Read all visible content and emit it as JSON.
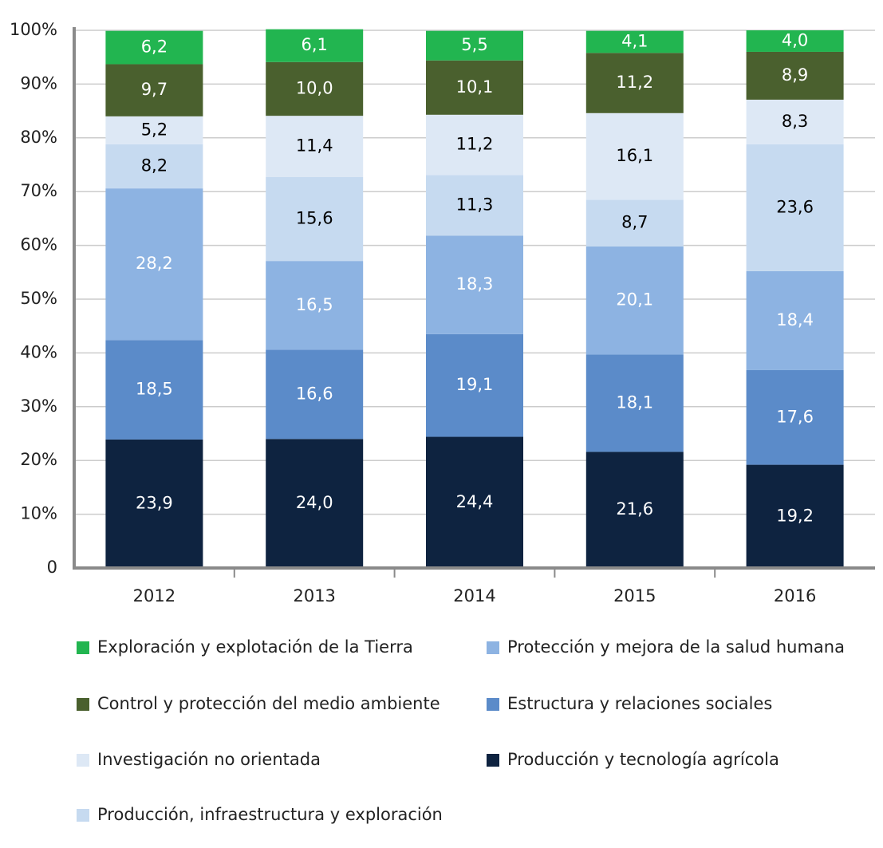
{
  "chart_data": {
    "type": "stacked_bar",
    "categories": [
      "2012",
      "2013",
      "2014",
      "2015",
      "2016"
    ],
    "series": [
      {
        "name": "Producción y tecnología agrícola",
        "color": "#0e2340",
        "label_color": "#ffffff",
        "values": [
          23.9,
          24.0,
          24.4,
          21.6,
          19.2
        ],
        "value_labels": [
          "23,9",
          "24,0",
          "24,4",
          "21,6",
          "19,2"
        ]
      },
      {
        "name": "Estructura y relaciones sociales",
        "color": "#5b8bc9",
        "label_color": "#ffffff",
        "values": [
          18.5,
          16.6,
          19.1,
          18.1,
          17.6
        ],
        "value_labels": [
          "18,5",
          "16,6",
          "19,1",
          "18,1",
          "17,6"
        ]
      },
      {
        "name": "Protección y mejora de la salud humana",
        "color": "#8db3e2",
        "label_color": "#ffffff",
        "values": [
          28.2,
          16.5,
          18.3,
          20.1,
          18.4
        ],
        "value_labels": [
          "28,2",
          "16,5",
          "18,3",
          "20,1",
          "18,4"
        ]
      },
      {
        "name": "Producción, infraestructura y exploración",
        "color": "#c6daf0",
        "label_color": "#000000",
        "values": [
          8.2,
          15.6,
          11.3,
          8.7,
          23.6
        ],
        "value_labels": [
          "8,2",
          "15,6",
          "11,3",
          "8,7",
          "23,6"
        ]
      },
      {
        "name": "Investigación no orientada",
        "color": "#dde8f5",
        "label_color": "#000000",
        "values": [
          5.2,
          11.4,
          11.2,
          16.1,
          8.3
        ],
        "value_labels": [
          "5,2",
          "11,4",
          "11,2",
          "16,1",
          "8,3"
        ]
      },
      {
        "name": "Control y protección del medio ambiente",
        "color": "#4a602e",
        "label_color": "#ffffff",
        "values": [
          9.7,
          10.0,
          10.1,
          11.2,
          8.9
        ],
        "value_labels": [
          "9,7",
          "10,0",
          "10,1",
          "11,2",
          "8,9"
        ]
      },
      {
        "name": "Exploración y explotación de la Tierra",
        "color": "#22b550",
        "label_color": "#ffffff",
        "values": [
          6.2,
          6.1,
          5.5,
          4.1,
          4.0
        ],
        "value_labels": [
          "6,2",
          "6,1",
          "5,5",
          "4,1",
          "4,0"
        ]
      }
    ],
    "ylim": [
      0,
      100
    ],
    "yticks": [
      0,
      {
        "value": 10,
        "label": "10%"
      },
      {
        "value": 20,
        "label": "20%"
      },
      {
        "value": 30,
        "label": "30%"
      },
      {
        "value": 40,
        "label": "40%"
      },
      {
        "value": 50,
        "label": "50%"
      },
      {
        "value": 60,
        "label": "60%"
      },
      {
        "value": 70,
        "label": "70%"
      },
      {
        "value": 80,
        "label": "80%"
      },
      {
        "value": 90,
        "label": "90%"
      },
      {
        "value": 100,
        "label": "100%"
      }
    ],
    "grid": true
  }
}
